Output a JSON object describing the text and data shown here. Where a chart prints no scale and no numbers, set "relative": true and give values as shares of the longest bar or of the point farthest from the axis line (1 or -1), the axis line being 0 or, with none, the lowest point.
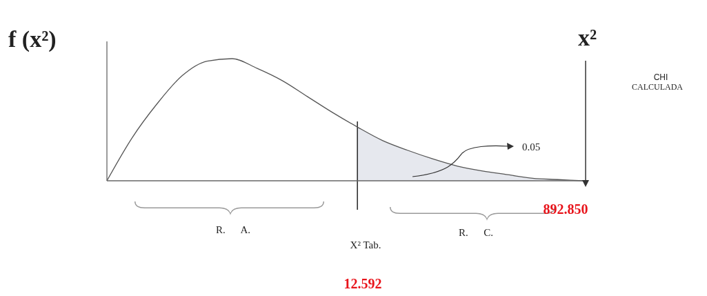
{
  "chart_data": {
    "type": "line",
    "relative": true,
    "categories": [
      null,
      null,
      null,
      null,
      null,
      null,
      null,
      null,
      null,
      null,
      null,
      null,
      null,
      null,
      null,
      null,
      null,
      null,
      null,
      null
    ],
    "series": [
      {
        "color": "#555555",
        "values": [
          0,
          0.35,
          0.63,
          0.86,
          0.98,
          1,
          0.92,
          0.82,
          0.69,
          0.56,
          0.44,
          0.33,
          0.25,
          0.18,
          0.12,
          0.08,
          0.05,
          0.02,
          0.01,
          0
        ]
      },
      {
        "type": "area",
        "color": "#e6e8ee",
        "values": [
          null,
          null,
          null,
          null,
          null,
          null,
          null,
          null,
          null,
          null,
          0.44,
          0.33,
          0.25,
          0.18,
          0.12,
          0.08,
          0.05,
          0.02,
          0.01,
          0
        ]
      }
    ],
    "annotations": [
      "f (x²)",
      "x²",
      "CHI",
      "CALCULADA",
      "0.05",
      "R.      A.",
      "R.      C.",
      "X² Tab.",
      "892.850",
      "12.592"
    ]
  }
}
